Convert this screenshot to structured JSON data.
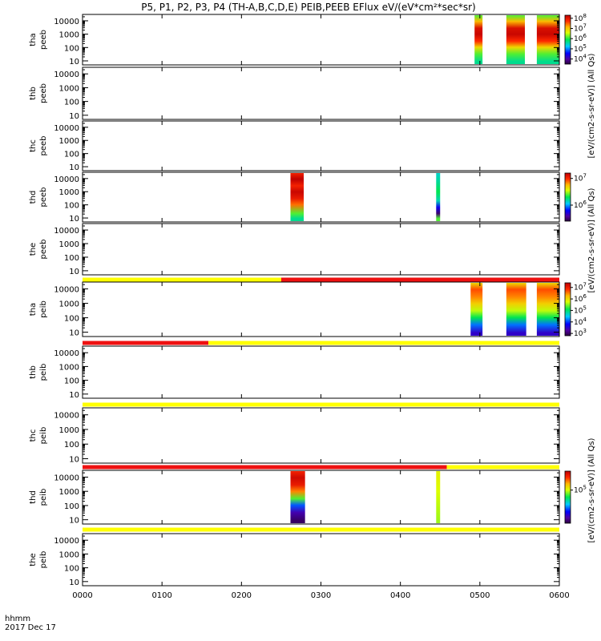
{
  "chart_data": {
    "type": "heatmap",
    "title": "P5, P1, P2, P3, P4 (TH-A,B,C,D,E) PEIB,PEEB EFlux eV/(eV*cm²*sec*sr)",
    "time_axis": {
      "ticks": [
        "0000",
        "0100",
        "0200",
        "0300",
        "0400",
        "0500",
        "0600"
      ],
      "range": [
        "00:00",
        "06:00"
      ],
      "label_hhmm": "hhmm",
      "label_date": "2017 Dec 17"
    },
    "y_ticks": [
      "10000",
      "1000",
      "100",
      "10"
    ],
    "y_range": [
      5,
      30000
    ],
    "y_scale": "log",
    "colorbar_labels": {
      "top": "[eV/(cm2-s-sr-eV)] (All Qs)",
      "middle": "[eV/(cm2-s-sr-eV)] (All Qs)",
      "bottom": "[eV/(cm2-s-sr-eV)] (All Qs)"
    },
    "colorbars": [
      {
        "panel": 0,
        "ticks": [
          {
            "exp": "8",
            "v": 8
          },
          {
            "exp": "7",
            "v": 7
          },
          {
            "exp": "6",
            "v": 6
          },
          {
            "exp": "5",
            "v": 5
          },
          {
            "exp": "4",
            "v": 4
          }
        ],
        "range": [
          3.5,
          8.3
        ]
      },
      {
        "panel": 3,
        "ticks": [
          {
            "exp": "7",
            "v": 7
          },
          {
            "exp": "6",
            "v": 6
          }
        ],
        "range": [
          5.4,
          7.2
        ]
      },
      {
        "panel": 5,
        "ticks": [
          {
            "exp": "7",
            "v": 7
          },
          {
            "exp": "6",
            "v": 6
          },
          {
            "exp": "5",
            "v": 5
          },
          {
            "exp": "4",
            "v": 4
          },
          {
            "exp": "3",
            "v": 3
          }
        ],
        "range": [
          2.8,
          7.4
        ]
      },
      {
        "panel": 8,
        "ticks": [
          {
            "exp": "5",
            "v": 5
          }
        ],
        "range": [
          4.3,
          5.4
        ]
      }
    ],
    "panels": [
      {
        "label_top": "tha",
        "label_bottom": "peeb",
        "data_blocks": [
          {
            "start": "04:56",
            "end": "05:02",
            "profile": "tha_e"
          },
          {
            "start": "05:20",
            "end": "05:34",
            "profile": "tha_e"
          },
          {
            "start": "05:43",
            "end": "06:00",
            "profile": "tha_e"
          }
        ]
      },
      {
        "label_top": "thb",
        "label_bottom": "peeb",
        "data_blocks": []
      },
      {
        "label_top": "thc",
        "label_bottom": "peeb",
        "data_blocks": []
      },
      {
        "label_top": "thd",
        "label_bottom": "peeb",
        "data_blocks": [
          {
            "start": "02:37",
            "end": "02:47",
            "profile": "thd_e1"
          },
          {
            "start": "04:27",
            "end": "04:30",
            "profile": "thd_e2"
          }
        ]
      },
      {
        "label_top": "the",
        "label_bottom": "peeb",
        "data_blocks": []
      },
      {
        "label_top": "tha",
        "label_bottom": "peib",
        "data_blocks": [
          {
            "start": "04:53",
            "end": "05:02",
            "profile": "tha_i"
          },
          {
            "start": "05:20",
            "end": "05:35",
            "profile": "tha_i"
          },
          {
            "start": "05:43",
            "end": "06:00",
            "profile": "tha_i"
          }
        ]
      },
      {
        "label_top": "thb",
        "label_bottom": "peib",
        "data_blocks": []
      },
      {
        "label_top": "thc",
        "label_bottom": "peib",
        "data_blocks": []
      },
      {
        "label_top": "thd",
        "label_bottom": "peib",
        "data_blocks": [
          {
            "start": "02:37",
            "end": "02:48",
            "profile": "thd_i1"
          },
          {
            "start": "04:27",
            "end": "04:30",
            "profile": "thd_i2"
          }
        ]
      },
      {
        "label_top": "the",
        "label_bottom": "peib",
        "data_blocks": []
      }
    ],
    "mode_bars": [
      {
        "after_panel": 4,
        "segments": [
          {
            "start": "00:00",
            "end": "02:30",
            "color": "#ffff00"
          },
          {
            "start": "02:30",
            "end": "06:00",
            "color": "#ee1111"
          }
        ]
      },
      {
        "after_panel": 5,
        "segments": [
          {
            "start": "00:00",
            "end": "01:35",
            "color": "#ee1111"
          },
          {
            "start": "01:35",
            "end": "06:00",
            "color": "#ffff00"
          }
        ]
      },
      {
        "after_panel": 6,
        "segments": [
          {
            "start": "00:00",
            "end": "06:00",
            "color": "#ffff00"
          }
        ]
      },
      {
        "after_panel": 7,
        "segments": [
          {
            "start": "00:00",
            "end": "04:35",
            "color": "#ee1111"
          },
          {
            "start": "04:35",
            "end": "06:00",
            "color": "#ffff00"
          }
        ]
      },
      {
        "after_panel": 8,
        "segments": [
          {
            "start": "00:00",
            "end": "06:00",
            "color": "#ffff00"
          }
        ]
      }
    ],
    "profiles": {
      "tha_e": [
        [
          8,
          0.45
        ],
        [
          30,
          0.55
        ],
        [
          100,
          0.7
        ],
        [
          300,
          0.88
        ],
        [
          1000,
          0.98
        ],
        [
          3000,
          0.95
        ],
        [
          10000,
          0.75
        ],
        [
          30000,
          0.55
        ]
      ],
      "tha_i": [
        [
          8,
          0.15
        ],
        [
          30,
          0.3
        ],
        [
          100,
          0.5
        ],
        [
          300,
          0.62
        ],
        [
          1000,
          0.72
        ],
        [
          3000,
          0.8
        ],
        [
          10000,
          0.85
        ],
        [
          30000,
          0.7
        ]
      ],
      "thd_e1": [
        [
          8,
          0.45
        ],
        [
          20,
          0.55
        ],
        [
          100,
          0.82
        ],
        [
          300,
          0.92
        ],
        [
          1000,
          0.98
        ],
        [
          3000,
          0.9
        ],
        [
          10000,
          1.0
        ],
        [
          30000,
          0.9
        ]
      ],
      "thd_e2": [
        [
          8,
          0.55
        ],
        [
          20,
          0.05
        ],
        [
          60,
          0.2
        ],
        [
          200,
          0.42
        ],
        [
          1000,
          0.5
        ],
        [
          5000,
          0.45
        ],
        [
          30000,
          0.4
        ]
      ],
      "thd_i1": [
        [
          8,
          0.04
        ],
        [
          30,
          0.12
        ],
        [
          100,
          0.28
        ],
        [
          300,
          0.55
        ],
        [
          1000,
          0.8
        ],
        [
          3000,
          0.92
        ],
        [
          10000,
          0.97
        ],
        [
          30000,
          0.9
        ]
      ],
      "thd_i2": [
        [
          8,
          0.6
        ],
        [
          100,
          0.62
        ],
        [
          1000,
          0.64
        ],
        [
          10000,
          0.66
        ],
        [
          30000,
          0.66
        ]
      ]
    }
  }
}
